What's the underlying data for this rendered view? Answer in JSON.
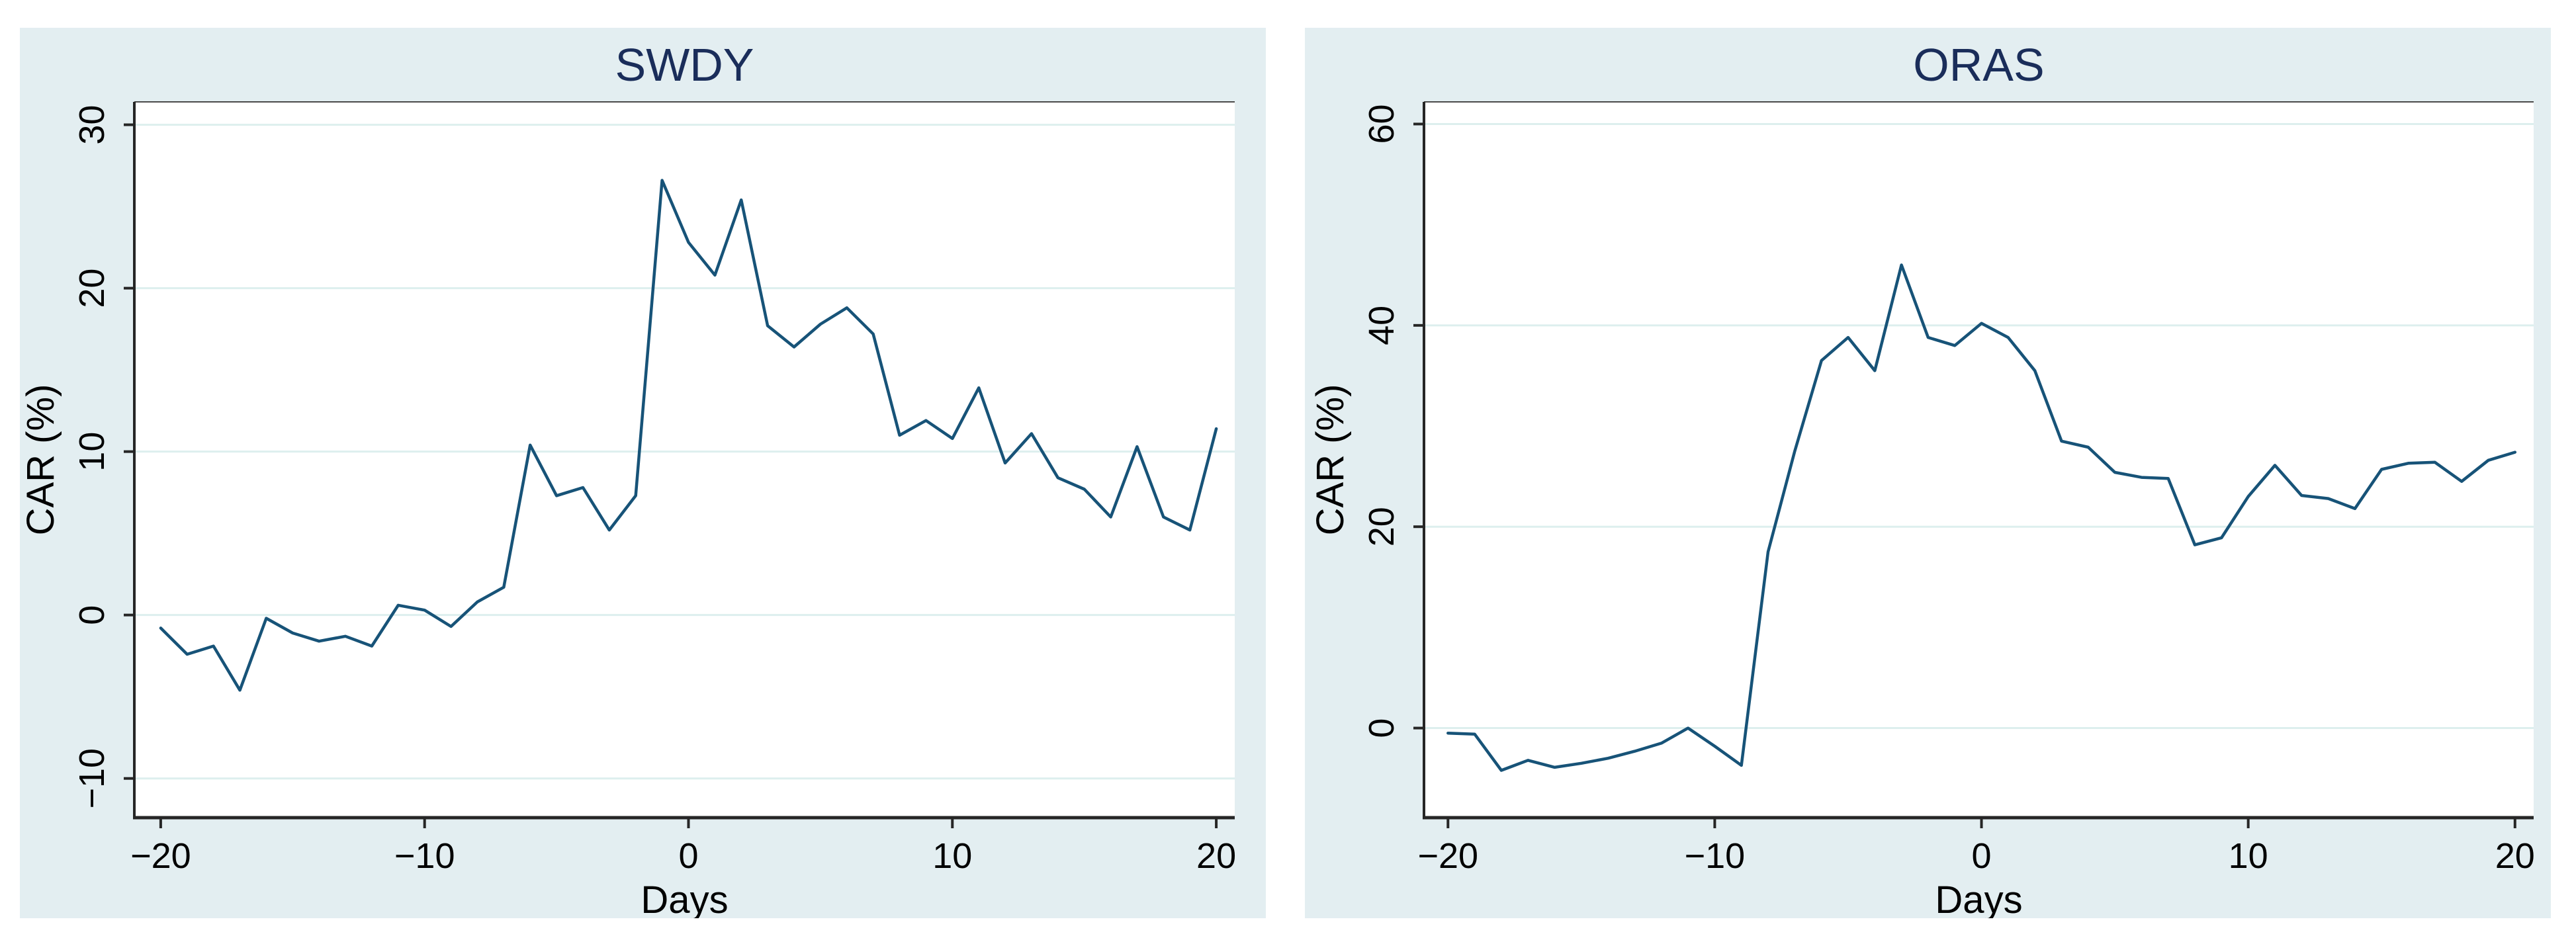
{
  "figure": {
    "background": "#ffffff",
    "panel_background": "#e3eef1",
    "plot_background": "#ffffff",
    "grid_color": "#ddefee",
    "axis_color": "#262626",
    "frame_color": "#4a4a4a",
    "title_color": "#1a2d5a",
    "line_color": "#175378",
    "tick_label_color": "#000000"
  },
  "chart_data": [
    {
      "type": "line",
      "title": "SWDY",
      "xlabel": "Days",
      "ylabel": "CAR (%)",
      "legend": "none",
      "grid": "horizontal-only",
      "x": [
        -20,
        -19,
        -18,
        -17,
        -16,
        -15,
        -14,
        -13,
        -12,
        -11,
        -10,
        -9,
        -8,
        -7,
        -6,
        -5,
        -4,
        -3,
        -2,
        -1,
        0,
        1,
        2,
        3,
        4,
        5,
        6,
        7,
        8,
        9,
        10,
        11,
        12,
        13,
        14,
        15,
        16,
        17,
        18,
        19,
        20
      ],
      "values": [
        -0.8,
        -2.4,
        -1.9,
        -4.6,
        -0.2,
        -1.1,
        -1.6,
        -1.3,
        -1.9,
        0.6,
        0.3,
        -0.7,
        0.8,
        1.7,
        10.4,
        7.3,
        7.8,
        5.2,
        7.3,
        26.6,
        22.8,
        20.8,
        25.4,
        17.7,
        16.4,
        17.8,
        18.8,
        17.2,
        11.0,
        11.9,
        10.8,
        13.9,
        9.3,
        11.1,
        8.4,
        7.7,
        6.0,
        10.3,
        6.0,
        5.2,
        11.4
      ],
      "xticks": [
        -20,
        -10,
        0,
        10,
        20
      ],
      "yticks": [
        -10,
        0,
        10,
        20,
        30
      ],
      "xlim": [
        -21.0,
        20.7
      ],
      "ylim": [
        -12.4,
        31.4
      ]
    },
    {
      "type": "line",
      "title": "ORAS",
      "xlabel": "Days",
      "ylabel": "CAR (%)",
      "legend": "none",
      "grid": "horizontal-only",
      "x": [
        -20,
        -19,
        -18,
        -17,
        -16,
        -15,
        -14,
        -13,
        -12,
        -11,
        -10,
        -9,
        -8,
        -7,
        -6,
        -5,
        -4,
        -3,
        -2,
        -1,
        0,
        1,
        2,
        3,
        4,
        5,
        6,
        7,
        8,
        9,
        10,
        11,
        12,
        13,
        14,
        15,
        16,
        17,
        18,
        19,
        20
      ],
      "values": [
        -0.5,
        -0.6,
        -4.2,
        -3.2,
        -3.9,
        -3.5,
        -3.0,
        -2.3,
        -1.5,
        0.0,
        -1.8,
        -3.7,
        17.5,
        27.5,
        36.5,
        38.8,
        35.5,
        46.0,
        38.8,
        38.0,
        40.2,
        38.8,
        35.5,
        28.5,
        27.9,
        25.4,
        24.9,
        24.8,
        18.2,
        18.9,
        23.0,
        26.1,
        23.1,
        22.8,
        21.8,
        25.7,
        26.3,
        26.4,
        24.5,
        26.6,
        27.4
      ],
      "xticks": [
        -20,
        -10,
        0,
        10,
        20
      ],
      "yticks": [
        0,
        20,
        40,
        60
      ],
      "xlim": [
        -20.9,
        20.7
      ],
      "ylim": [
        -8.9,
        62.2
      ]
    }
  ]
}
